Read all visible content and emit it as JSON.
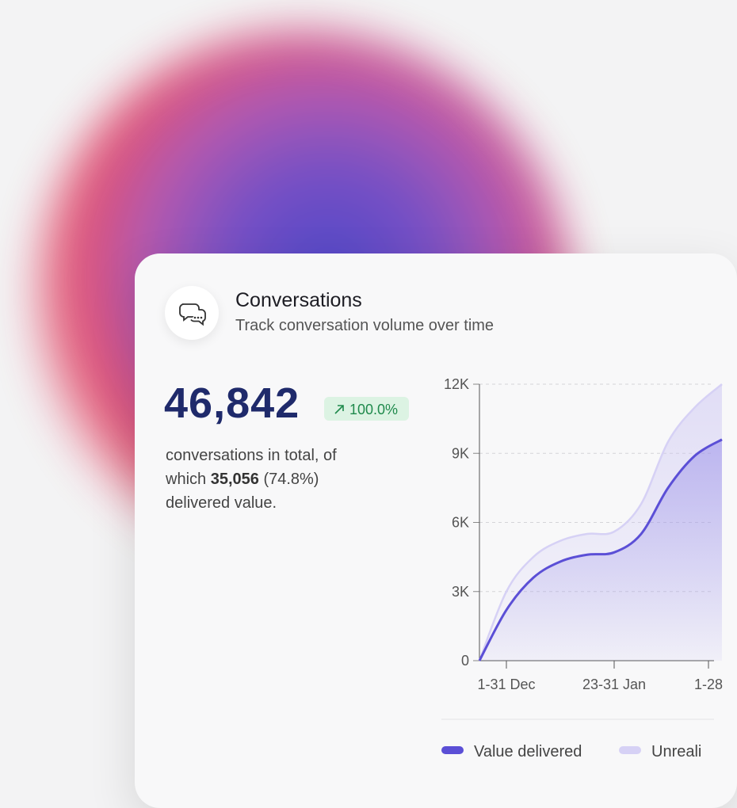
{
  "card": {
    "title": "Conversations",
    "subtitle": "Track conversation volume over time",
    "total": "46,842",
    "change": "100.0%",
    "description_start": "conversations in total, of which",
    "delivered_count": "35,056",
    "delivered_share": "(74.8%)",
    "description_end": "delivered value."
  },
  "chart_data": {
    "type": "line",
    "x": [
      0,
      1,
      2,
      3,
      4,
      5,
      6,
      7,
      8,
      9
    ],
    "series": [
      {
        "name": "Value delivered",
        "color": "#5b4fd6",
        "values": [
          0,
          2200,
          3600,
          4300,
          4600,
          4700,
          5500,
          7500,
          8900,
          9600
        ]
      },
      {
        "name": "Unreali",
        "color": "#d6d1f5",
        "values": [
          0,
          3000,
          4500,
          5200,
          5500,
          5600,
          6800,
          9500,
          11000,
          12000
        ]
      }
    ],
    "xlim": [
      0,
      9
    ],
    "xticks": [
      {
        "value": 1,
        "label": "1-31 Dec"
      },
      {
        "value": 5,
        "label": "23-31 Jan"
      },
      {
        "value": 8.5,
        "label": "1-28"
      }
    ],
    "ylim": [
      0,
      12000
    ],
    "yticks": [
      0,
      {
        "value": 3000,
        "label": "3K"
      },
      {
        "value": 6000,
        "label": "6K"
      },
      {
        "value": 9000,
        "label": "9K"
      },
      {
        "value": 12000,
        "label": "12K"
      }
    ],
    "grid": true
  }
}
